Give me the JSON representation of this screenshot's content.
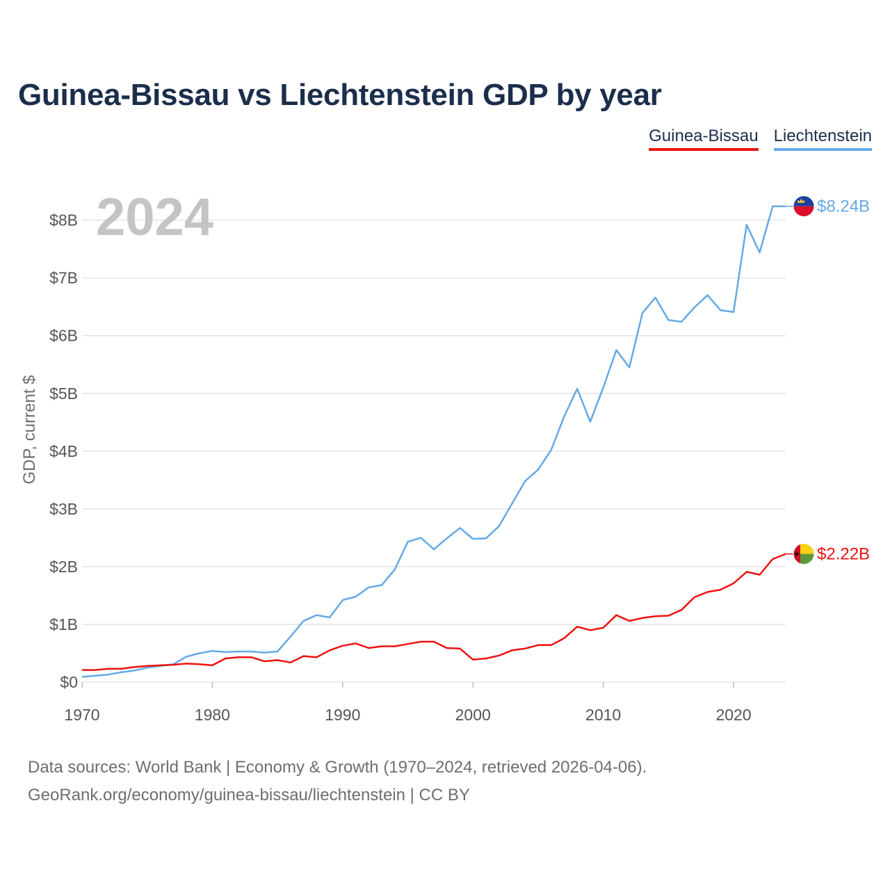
{
  "title": "Guinea-Bissau vs Liechtenstein GDP by year",
  "legend": [
    {
      "label": "Guinea-Bissau",
      "color": "#ee1111"
    },
    {
      "label": "Liechtenstein",
      "color": "#64a9e7"
    }
  ],
  "footer": {
    "line1": "Data sources: World Bank | Economy & Growth (1970–2024, retrieved 2026-04-06).",
    "line2": "GeoRank.org/economy/guinea-bissau/liechtenstein | CC BY"
  },
  "chart_data": {
    "type": "line",
    "title": "Guinea-Bissau vs Liechtenstein GDP by year",
    "xlabel": "",
    "ylabel": "GDP, current $",
    "year_watermark": "2024",
    "xlim": [
      1970,
      2024
    ],
    "ylim": [
      0,
      8.2
    ],
    "x_ticks": [
      1970,
      1980,
      1990,
      2000,
      2010,
      2020
    ],
    "y_ticks": [
      {
        "value": 0,
        "label": "$0"
      },
      {
        "value": 1,
        "label": "$1B"
      },
      {
        "value": 2,
        "label": "$2B"
      },
      {
        "value": 3,
        "label": "$3B"
      },
      {
        "value": 4,
        "label": "$4B"
      },
      {
        "value": 5,
        "label": "$5B"
      },
      {
        "value": 6,
        "label": "$6B"
      },
      {
        "value": 7,
        "label": "$7B"
      },
      {
        "value": 8,
        "label": "$8B"
      }
    ],
    "units": "billions of current US$",
    "grid": true,
    "legend_position": "top-right",
    "x": [
      1970,
      1971,
      1972,
      1973,
      1974,
      1975,
      1976,
      1977,
      1978,
      1979,
      1980,
      1981,
      1982,
      1983,
      1984,
      1985,
      1986,
      1987,
      1988,
      1989,
      1990,
      1991,
      1992,
      1993,
      1994,
      1995,
      1996,
      1997,
      1998,
      1999,
      2000,
      2001,
      2002,
      2003,
      2004,
      2005,
      2006,
      2007,
      2008,
      2009,
      2010,
      2011,
      2012,
      2013,
      2014,
      2015,
      2016,
      2017,
      2018,
      2019,
      2020,
      2021,
      2022,
      2023,
      2024
    ],
    "series": [
      {
        "name": "Liechtenstein",
        "color": "#64a9e7",
        "end_label": "$8.24B",
        "flag": "liechtenstein-flag-icon",
        "values": [
          0.09,
          0.11,
          0.13,
          0.17,
          0.2,
          0.25,
          0.28,
          0.31,
          0.44,
          0.5,
          0.54,
          0.52,
          0.53,
          0.53,
          0.51,
          0.53,
          0.79,
          1.06,
          1.16,
          1.12,
          1.42,
          1.48,
          1.64,
          1.68,
          1.95,
          2.43,
          2.5,
          2.3,
          2.49,
          2.67,
          2.48,
          2.49,
          2.7,
          3.09,
          3.48,
          3.68,
          4.02,
          4.6,
          5.08,
          4.51,
          5.1,
          5.75,
          5.45,
          6.39,
          6.66,
          6.27,
          6.24,
          6.49,
          6.7,
          6.44,
          6.41,
          7.92,
          7.44,
          8.24,
          8.24
        ]
      },
      {
        "name": "Guinea-Bissau",
        "color": "#ee1111",
        "end_label": "$2.22B",
        "flag": "guinea-bissau-flag-icon",
        "values": [
          0.21,
          0.21,
          0.23,
          0.23,
          0.26,
          0.28,
          0.29,
          0.3,
          0.32,
          0.31,
          0.29,
          0.41,
          0.43,
          0.43,
          0.36,
          0.38,
          0.34,
          0.45,
          0.43,
          0.55,
          0.63,
          0.67,
          0.59,
          0.62,
          0.62,
          0.66,
          0.7,
          0.7,
          0.59,
          0.58,
          0.39,
          0.41,
          0.46,
          0.55,
          0.58,
          0.64,
          0.64,
          0.76,
          0.96,
          0.9,
          0.94,
          1.16,
          1.06,
          1.11,
          1.14,
          1.15,
          1.25,
          1.47,
          1.56,
          1.6,
          1.71,
          1.91,
          1.86,
          2.13,
          2.22
        ]
      }
    ]
  }
}
